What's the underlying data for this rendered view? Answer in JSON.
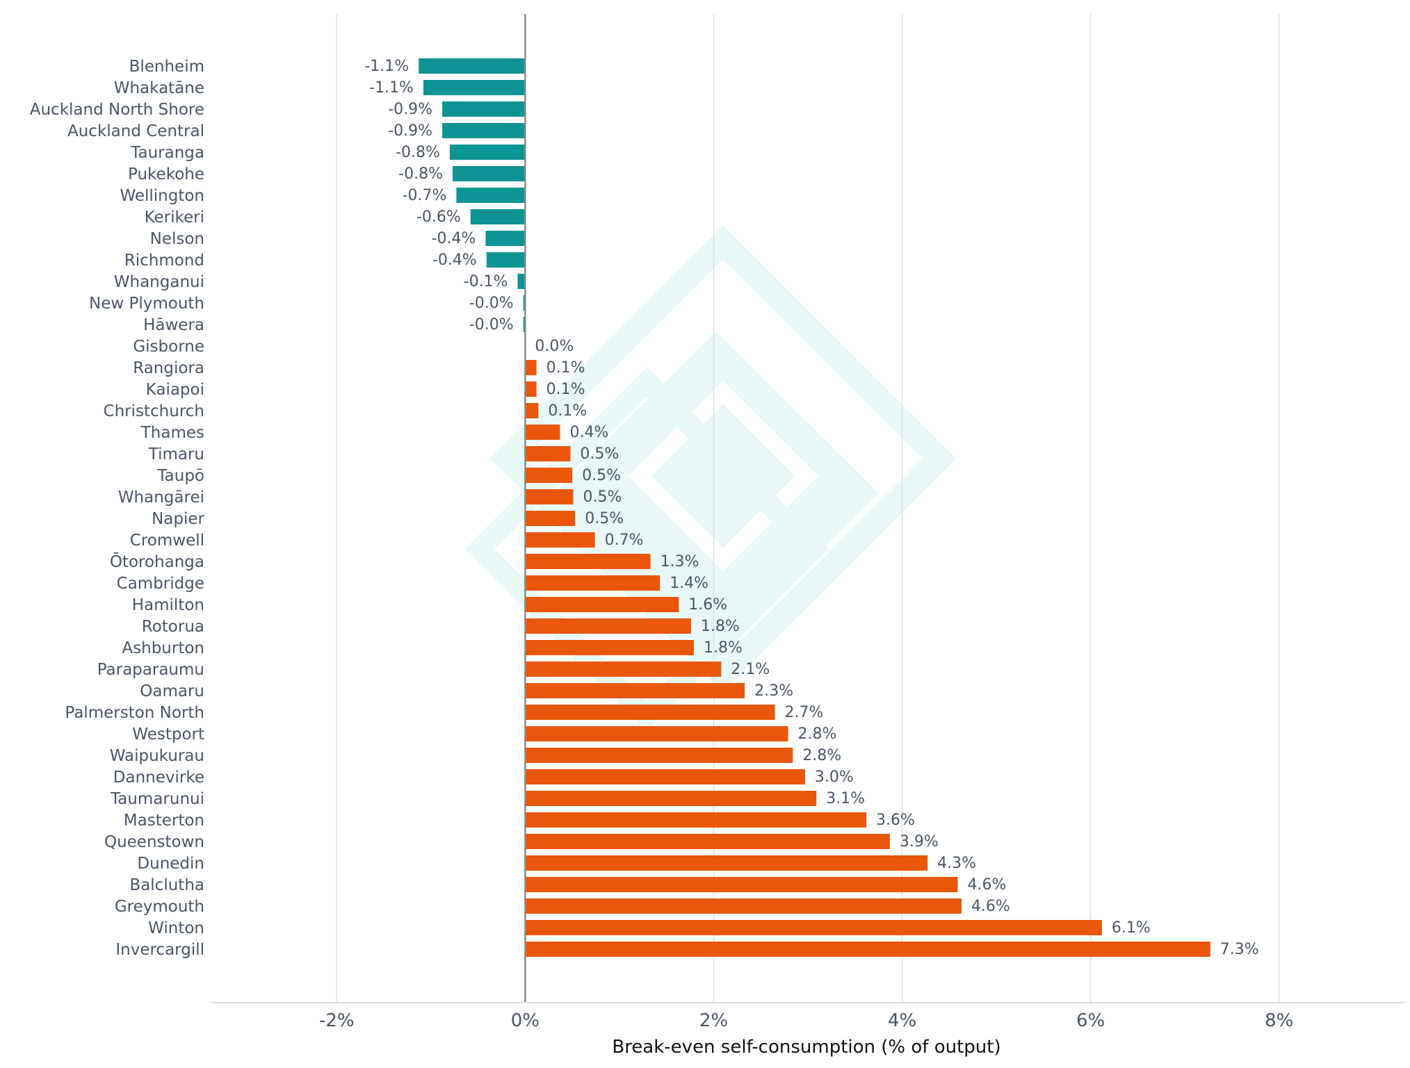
{
  "chart_data": {
    "type": "bar",
    "orientation": "horizontal",
    "xlabel": "Break-even self-consumption (% of output)",
    "ylabel": "",
    "xlim": [
      -3.33,
      9.33
    ],
    "x_ticks": [
      -2,
      0,
      2,
      4,
      6,
      8
    ],
    "x_tick_labels": [
      "-2%",
      "0%",
      "2%",
      "4%",
      "6%",
      "8%"
    ],
    "grid": "vertical",
    "colors": {
      "negative": "#0e9494",
      "positive": "#e8570b",
      "zero_line": "#8a8a8a",
      "grid": "#e0e0e0"
    },
    "categories": [
      "Blenheim",
      "Whakatāne",
      "Auckland North Shore",
      "Auckland Central",
      "Tauranga",
      "Pukekohe",
      "Wellington",
      "Kerikeri",
      "Nelson",
      "Richmond",
      "Whanganui",
      "New Plymouth",
      "Hāwera",
      "Gisborne",
      "Rangiora",
      "Kaiapoi",
      "Christchurch",
      "Thames",
      "Timaru",
      "Taupō",
      "Whangārei",
      "Napier",
      "Cromwell",
      "Ōtorohanga",
      "Cambridge",
      "Hamilton",
      "Rotorua",
      "Ashburton",
      "Paraparaumu",
      "Oamaru",
      "Palmerston North",
      "Westport",
      "Waipukurau",
      "Dannevirke",
      "Taumarunui",
      "Masterton",
      "Queenstown",
      "Dunedin",
      "Balclutha",
      "Greymouth",
      "Winton",
      "Invercargill"
    ],
    "values": [
      -1.13,
      -1.08,
      -0.88,
      -0.88,
      -0.8,
      -0.77,
      -0.73,
      -0.58,
      -0.42,
      -0.41,
      -0.08,
      -0.02,
      -0.02,
      0.0,
      0.12,
      0.12,
      0.14,
      0.37,
      0.48,
      0.5,
      0.51,
      0.53,
      0.74,
      1.33,
      1.43,
      1.63,
      1.76,
      1.79,
      2.08,
      2.33,
      2.65,
      2.79,
      2.84,
      2.97,
      3.09,
      3.62,
      3.87,
      4.27,
      4.59,
      4.63,
      6.12,
      7.27
    ],
    "value_labels": [
      "-1.1%",
      "-1.1%",
      "-0.9%",
      "-0.9%",
      "-0.8%",
      "-0.8%",
      "-0.7%",
      "-0.6%",
      "-0.4%",
      "-0.4%",
      "-0.1%",
      "-0.0%",
      "-0.0%",
      "0.0%",
      "0.1%",
      "0.1%",
      "0.1%",
      "0.4%",
      "0.5%",
      "0.5%",
      "0.5%",
      "0.5%",
      "0.7%",
      "1.3%",
      "1.4%",
      "1.6%",
      "1.8%",
      "1.8%",
      "2.1%",
      "2.3%",
      "2.7%",
      "2.8%",
      "2.8%",
      "3.0%",
      "3.1%",
      "3.6%",
      "3.9%",
      "4.3%",
      "4.6%",
      "4.6%",
      "6.1%",
      "7.3%"
    ]
  }
}
